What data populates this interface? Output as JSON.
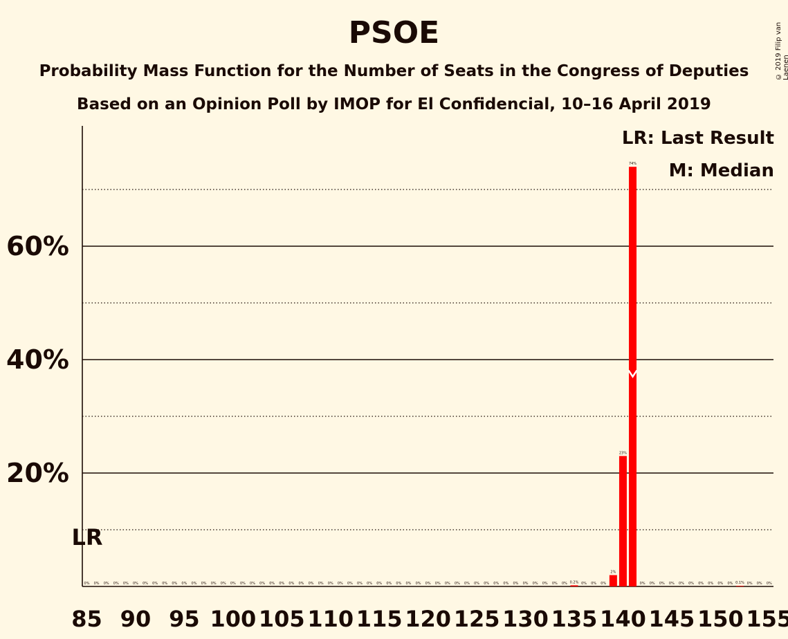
{
  "title": "PSOE",
  "subtitle1": "Probability Mass Function for the Number of Seats in the Congress of Deputies",
  "subtitle2": "Based on an Opinion Poll by IMOP for El Confidencial, 10–16 April 2019",
  "copyright": "© 2019 Filip van Laenen",
  "legend": {
    "last_result": "LR: Last Result",
    "median": "M: Median"
  },
  "markers": {
    "last_result_label": "LR",
    "last_result_seat": 85,
    "median_label": "M",
    "median_seat": 141
  },
  "colors": {
    "bar": "#ff0000",
    "background": "#fff8e4",
    "text": "#1a0a05",
    "median_marker": "#ffffff"
  },
  "chart_data": {
    "type": "bar",
    "x_range": [
      85,
      155
    ],
    "ylim": [
      0,
      0.8
    ],
    "y_ticks": [
      {
        "value": 0.2,
        "label": "20%"
      },
      {
        "value": 0.4,
        "label": "40%"
      },
      {
        "value": 0.6,
        "label": "60%"
      }
    ],
    "y_minor_gridlines": [
      0.1,
      0.3,
      0.5,
      0.7
    ],
    "x_ticks": [
      85,
      90,
      95,
      100,
      105,
      110,
      115,
      120,
      125,
      130,
      135,
      140,
      145,
      150,
      155
    ],
    "seats": [
      85,
      86,
      87,
      88,
      89,
      90,
      91,
      92,
      93,
      94,
      95,
      96,
      97,
      98,
      99,
      100,
      101,
      102,
      103,
      104,
      105,
      106,
      107,
      108,
      109,
      110,
      111,
      112,
      113,
      114,
      115,
      116,
      117,
      118,
      119,
      120,
      121,
      122,
      123,
      124,
      125,
      126,
      127,
      128,
      129,
      130,
      131,
      132,
      133,
      134,
      135,
      136,
      137,
      138,
      139,
      140,
      141,
      142,
      143,
      144,
      145,
      146,
      147,
      148,
      149,
      150,
      151,
      152,
      153,
      154,
      155
    ],
    "values": [
      0,
      0,
      0,
      0,
      0,
      0,
      0,
      0,
      0,
      0,
      0,
      0,
      0,
      0,
      0,
      0,
      0,
      0,
      0,
      0,
      0,
      0,
      0,
      0,
      0,
      0,
      0,
      0,
      0,
      0,
      0,
      0,
      0,
      0,
      0,
      0,
      0,
      0,
      0,
      0,
      0,
      0,
      0,
      0,
      0,
      0,
      0,
      0,
      0,
      0,
      0.002,
      0,
      0,
      0,
      0.02,
      0.23,
      0.74,
      0,
      0,
      0,
      0,
      0,
      0,
      0,
      0,
      0,
      0,
      0.001,
      0,
      0,
      0
    ],
    "labels": [
      "0%",
      "0%",
      "0%",
      "0%",
      "0%",
      "0%",
      "0%",
      "0%",
      "0%",
      "0%",
      "0%",
      "0%",
      "0%",
      "0%",
      "0%",
      "0%",
      "0%",
      "0%",
      "0%",
      "0%",
      "0%",
      "0%",
      "0%",
      "0%",
      "0%",
      "0%",
      "0%",
      "0%",
      "0%",
      "0%",
      "0%",
      "0%",
      "0%",
      "0%",
      "0%",
      "0%",
      "0%",
      "0%",
      "0%",
      "0%",
      "0%",
      "0%",
      "0%",
      "0%",
      "0%",
      "0%",
      "0%",
      "0%",
      "0%",
      "0%",
      "0.2%",
      "0%",
      "0%",
      "0%",
      "2%",
      "23%",
      "74%",
      "0%",
      "0%",
      "0%",
      "0%",
      "0%",
      "0%",
      "0%",
      "0%",
      "0%",
      "0%",
      "0.1%",
      "0%",
      "0%",
      "0%"
    ]
  }
}
